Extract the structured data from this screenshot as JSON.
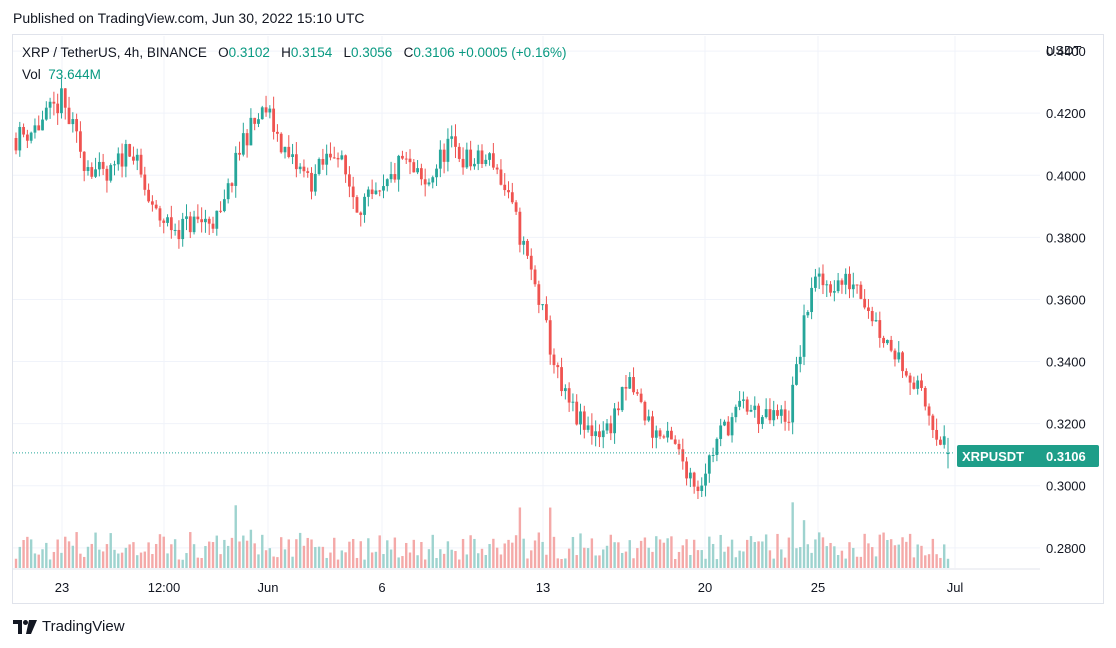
{
  "header": {
    "published": "Published on TradingView.com, Jun 30, 2022 15:10 UTC"
  },
  "legend": {
    "symbol": "XRP / TetherUS, 4h, BINANCE",
    "open_label": "O",
    "open": "0.3102",
    "high_label": "H",
    "high": "0.3154",
    "low_label": "L",
    "low": "0.3056",
    "close_label": "C",
    "close": "0.3106",
    "change": "+0.0005 (+0.16%)",
    "vol_label": "Vol",
    "vol": "73.644M"
  },
  "currency": "USDT",
  "price_tag": {
    "symbol": "XRPUSDT",
    "price": "0.3106"
  },
  "footer": {
    "brand": "TradingView"
  },
  "colors": {
    "up": "#26a69a",
    "down": "#ef5350",
    "vol_up": "#9ed3cf",
    "vol_down": "#f4a9a8",
    "tag": "#1e9e89"
  },
  "chart_data": {
    "type": "candlestick",
    "timeframe": "4h",
    "y_axis": {
      "ticks": [
        "0.4400",
        "0.4200",
        "0.4000",
        "0.3800",
        "0.3600",
        "0.3400",
        "0.3200",
        "0.3000",
        "0.2800"
      ],
      "range": [
        0.2735,
        0.4455
      ]
    },
    "x_axis": {
      "ticks": [
        "23",
        "12:00",
        "Jun",
        "6",
        "13",
        "20",
        "25",
        "Jul"
      ]
    },
    "series": [
      {
        "date": "May 20",
        "close": 0.412
      },
      {
        "date": "May 21",
        "close": 0.416
      },
      {
        "date": "May 22",
        "close": 0.424
      },
      {
        "date": "May 23",
        "close": 0.405
      },
      {
        "date": "May 24",
        "close": 0.398
      },
      {
        "date": "May 25",
        "close": 0.41
      },
      {
        "date": "May 26",
        "close": 0.388
      },
      {
        "date": "May 27",
        "close": 0.383
      },
      {
        "date": "May 28",
        "close": 0.385
      },
      {
        "date": "May 29",
        "close": 0.386
      },
      {
        "date": "May 30",
        "close": 0.412
      },
      {
        "date": "May 31",
        "close": 0.421
      },
      {
        "date": "Jun 1",
        "close": 0.405
      },
      {
        "date": "Jun 2",
        "close": 0.398
      },
      {
        "date": "Jun 3",
        "close": 0.409
      },
      {
        "date": "Jun 4",
        "close": 0.391
      },
      {
        "date": "Jun 5",
        "close": 0.392
      },
      {
        "date": "Jun 6",
        "close": 0.405
      },
      {
        "date": "Jun 7",
        "close": 0.396
      },
      {
        "date": "Jun 8",
        "close": 0.41
      },
      {
        "date": "Jun 9",
        "close": 0.404
      },
      {
        "date": "Jun 10",
        "close": 0.405
      },
      {
        "date": "Jun 11",
        "close": 0.385
      },
      {
        "date": "Jun 12",
        "close": 0.36
      },
      {
        "date": "Jun 13",
        "close": 0.33
      },
      {
        "date": "Jun 14",
        "close": 0.318
      },
      {
        "date": "Jun 15",
        "close": 0.318
      },
      {
        "date": "Jun 16",
        "close": 0.333
      },
      {
        "date": "Jun 17",
        "close": 0.318
      },
      {
        "date": "Jun 18",
        "close": 0.312
      },
      {
        "date": "Jun 19",
        "close": 0.3
      },
      {
        "date": "Jun 20",
        "close": 0.317
      },
      {
        "date": "Jun 21",
        "close": 0.326
      },
      {
        "date": "Jun 22",
        "close": 0.321
      },
      {
        "date": "Jun 23",
        "close": 0.323
      },
      {
        "date": "Jun 24",
        "close": 0.365
      },
      {
        "date": "Jun 25",
        "close": 0.365
      },
      {
        "date": "Jun 26",
        "close": 0.366
      },
      {
        "date": "Jun 27",
        "close": 0.35
      },
      {
        "date": "Jun 28",
        "close": 0.34
      },
      {
        "date": "Jun 29",
        "close": 0.326
      },
      {
        "date": "Jun 30",
        "close": 0.3106
      }
    ],
    "last": {
      "open": 0.3102,
      "high": 0.3154,
      "low": 0.3056,
      "close": 0.3106
    },
    "grid": true
  }
}
